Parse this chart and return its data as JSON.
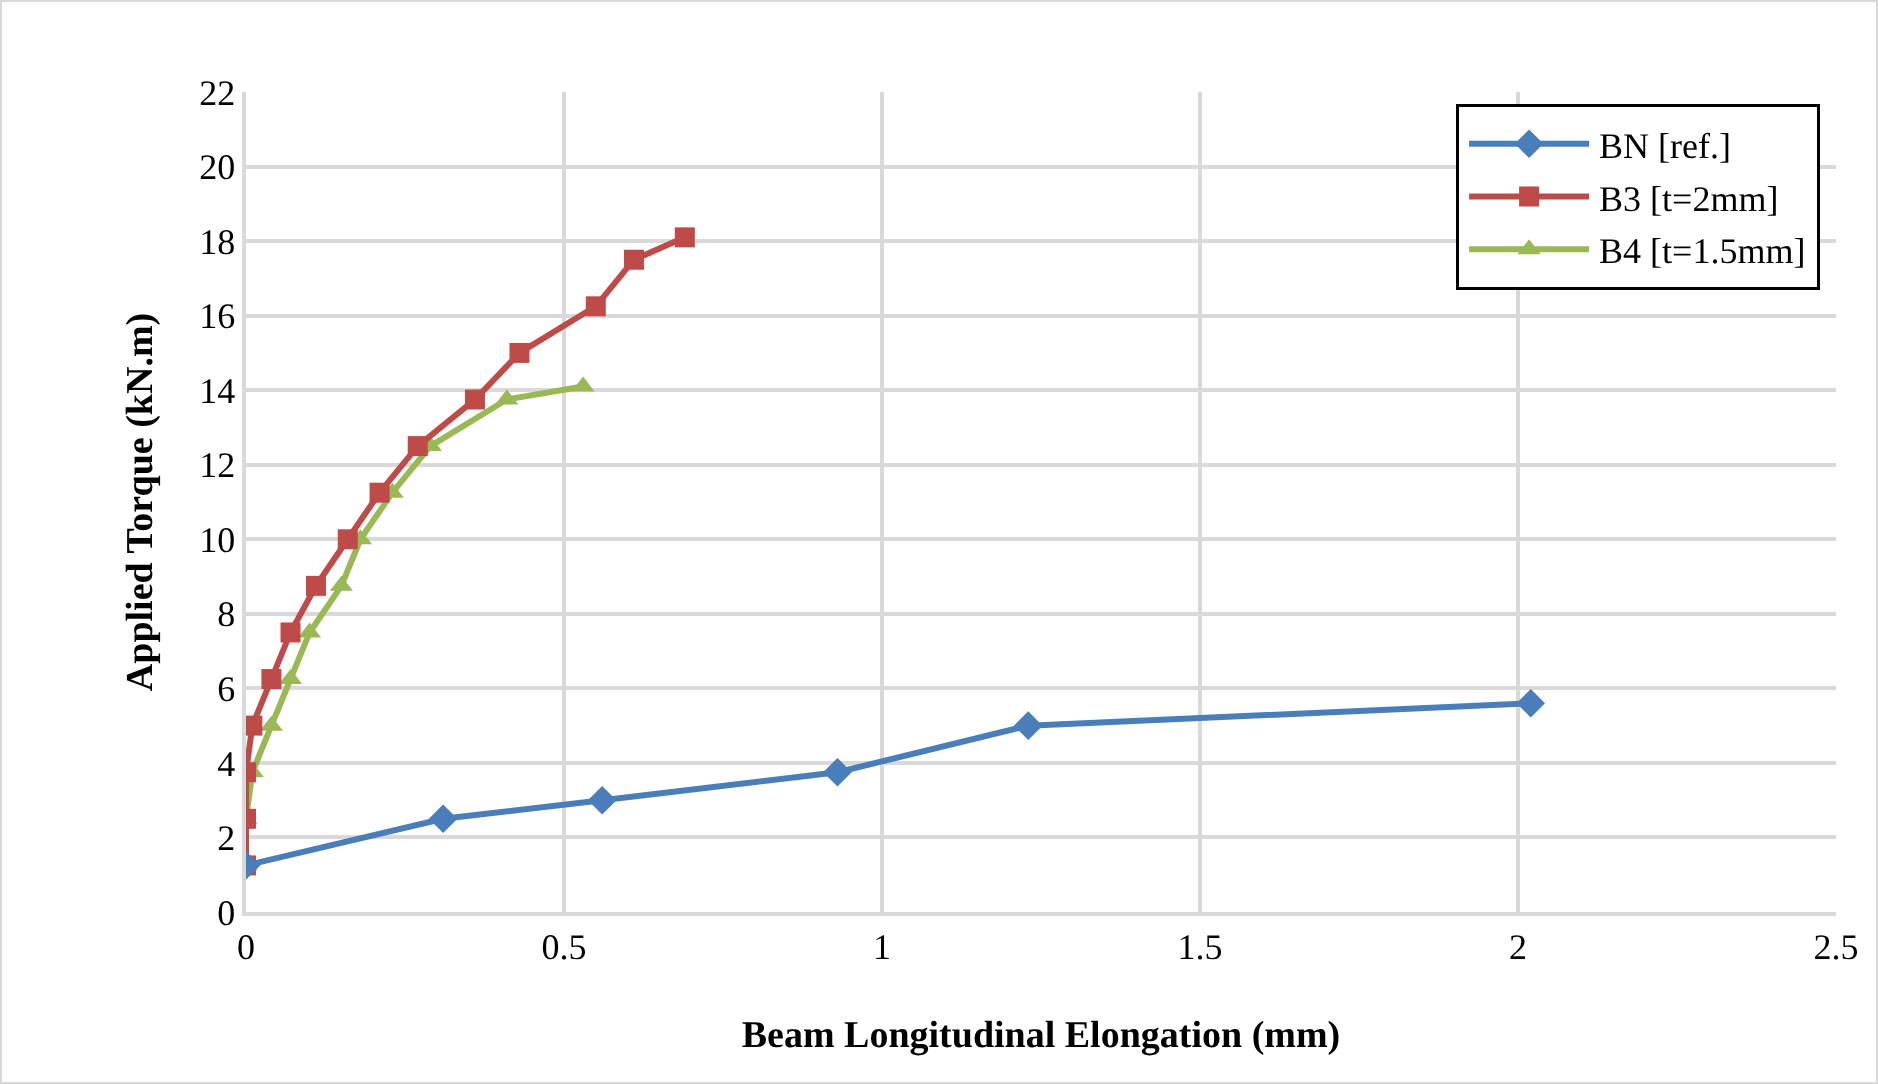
{
  "chart_data": {
    "type": "line",
    "xlabel": "Beam Longitudinal Elongation (mm)",
    "ylabel": "Applied Torque (kN.m)",
    "xlim": [
      0,
      2.5
    ],
    "xticks": [
      0,
      0.5,
      1,
      1.5,
      2,
      2.5
    ],
    "ylim": [
      0,
      22
    ],
    "yticks": [
      0,
      2,
      4,
      6,
      8,
      10,
      12,
      14,
      16,
      18,
      20,
      22
    ],
    "grid": true,
    "legend": "top right",
    "line_style": "solid",
    "series": [
      {
        "name": "BN [ref.]",
        "color": "#4a7ebb",
        "marker": "diamond",
        "x": [
          0,
          0.31,
          0.56,
          0.93,
          1.23,
          2.02
        ],
        "values": [
          1.25,
          2.5,
          3.0,
          3.75,
          5.0,
          5.6
        ]
      },
      {
        "name": "B3 [t=2mm]",
        "color": "#be4b48",
        "marker": "square",
        "x": [
          0,
          0,
          0,
          0.01,
          0.04,
          0.07,
          0.11,
          0.16,
          0.21,
          0.27,
          0.36,
          0.43,
          0.55,
          0.61,
          0.69
        ],
        "values": [
          1.25,
          2.5,
          3.75,
          5,
          6.25,
          7.5,
          8.75,
          10,
          11.25,
          12.5,
          13.75,
          15,
          16.25,
          17.5,
          18.1
        ]
      },
      {
        "name": "B4 [t=1.5mm]",
        "color": "#98b954",
        "marker": "triangle",
        "x": [
          0,
          0,
          0.01,
          0.04,
          0.07,
          0.1,
          0.15,
          0.18,
          0.23,
          0.29,
          0.41,
          0.53
        ],
        "values": [
          1.25,
          2.5,
          3.75,
          5,
          6.25,
          7.5,
          8.75,
          10,
          11.25,
          12.5,
          13.75,
          14.1
        ]
      }
    ]
  }
}
